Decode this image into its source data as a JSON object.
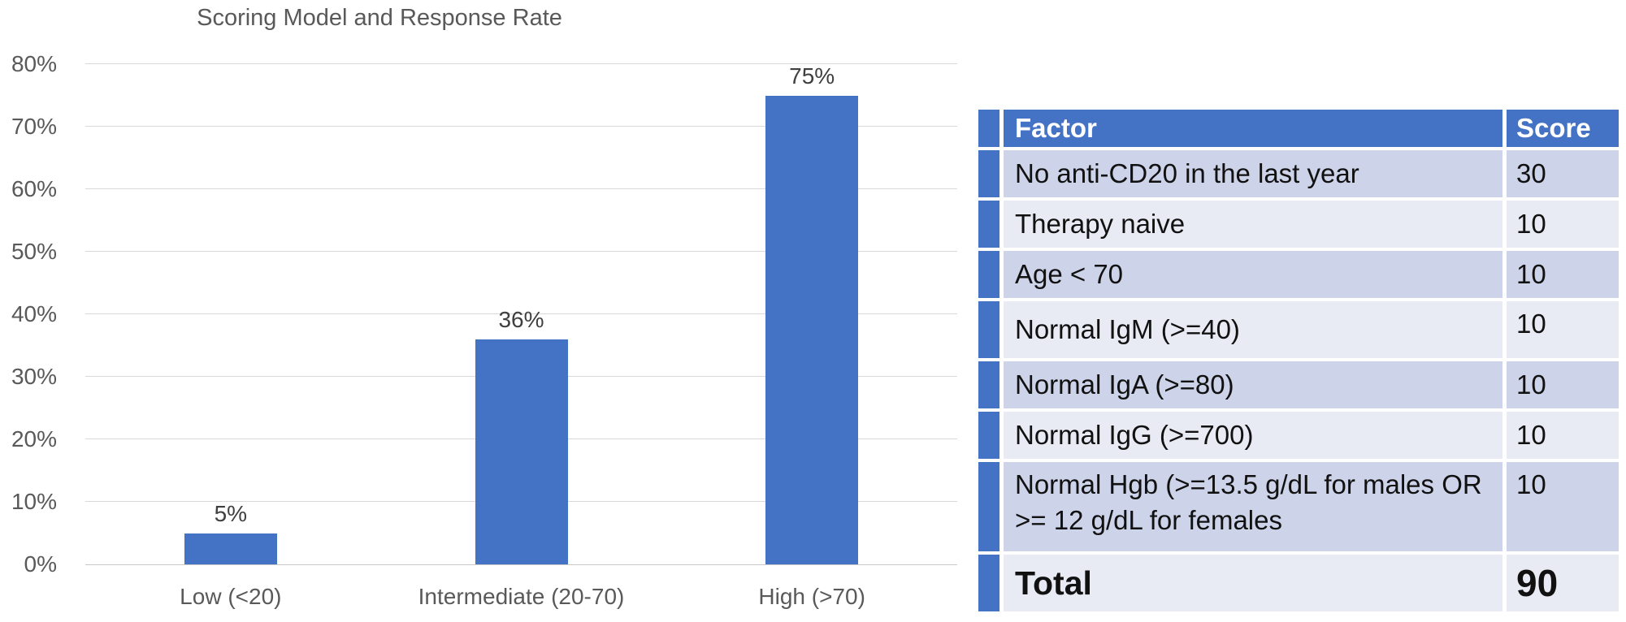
{
  "chart_data": {
    "type": "bar",
    "title": "Scoring Model and Response Rate",
    "categories": [
      "Low (<20)",
      "Intermediate (20-70)",
      "High (>70)"
    ],
    "values": [
      5,
      36,
      75
    ],
    "value_labels": [
      "5%",
      "36%",
      "75%"
    ],
    "xlabel": "",
    "ylabel": "",
    "ylim": [
      0,
      80
    ],
    "ytick_step": 10,
    "ytick_labels": [
      "0%",
      "10%",
      "20%",
      "30%",
      "40%",
      "50%",
      "60%",
      "70%",
      "80%"
    ],
    "grid": true,
    "legend_position": "none",
    "bar_color": "#4472C4",
    "label_color": "#595959"
  },
  "table": {
    "columns": [
      "Factor",
      "Score"
    ],
    "rows": [
      {
        "factor": "No anti-CD20 in the last year",
        "score": "30"
      },
      {
        "factor": "Therapy naive",
        "score": "10"
      },
      {
        "factor": "Age < 70",
        "score": "10"
      },
      {
        "factor": "Normal IgM (>=40)",
        "score": "10"
      },
      {
        "factor": "Normal IgA (>=80)",
        "score": "10"
      },
      {
        "factor": "Normal IgG (>=700)",
        "score": "10"
      },
      {
        "factor": "Normal Hgb (>=13.5 g/dL for males OR >= 12 g/dL for  females",
        "score": "10"
      },
      {
        "factor": "Total",
        "score": "90"
      }
    ],
    "colors": {
      "header_bg": "#4472C4",
      "header_text": "#ffffff",
      "band_dark": "#CDD3E9",
      "band_light": "#E9EBF4",
      "accent_strip": "#4472C4"
    }
  }
}
